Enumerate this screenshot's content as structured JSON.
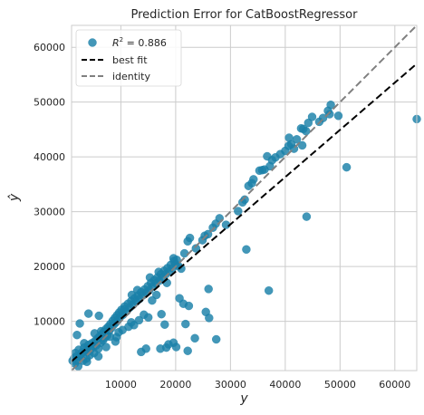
{
  "chart_data": {
    "type": "scatter",
    "title": "Prediction Error for CatBoostRegressor",
    "xlabel": "y",
    "ylabel": "ŷ",
    "xlim": [
      1000,
      64000
    ],
    "ylim": [
      1000,
      64000
    ],
    "xticks": [
      10000,
      20000,
      30000,
      40000,
      50000,
      60000
    ],
    "yticks": [
      10000,
      20000,
      30000,
      40000,
      50000,
      60000
    ],
    "xtick_labels": [
      "10000",
      "20000",
      "30000",
      "40000",
      "50000",
      "60000"
    ],
    "ytick_labels": [
      "10000",
      "20000",
      "30000",
      "40000",
      "50000",
      "60000"
    ],
    "grid": true,
    "legend": {
      "placement": "top-left",
      "entries": [
        {
          "kind": "marker",
          "label_prefix": "R",
          "label_sup": "2",
          "label_suffix": " = 0.886"
        },
        {
          "kind": "line",
          "label": "best fit"
        },
        {
          "kind": "line",
          "label": "identity"
        }
      ]
    },
    "best_fit": {
      "points": [
        [
          1000,
          2700
        ],
        [
          64000,
          57000
        ]
      ],
      "color": "#000000",
      "style": "dashed"
    },
    "identity": {
      "points": [
        [
          1000,
          1000
        ],
        [
          64000,
          64000
        ]
      ],
      "color": "#808080",
      "style": "dashed"
    },
    "marker_color": "#1a80a8",
    "series": [
      {
        "points": [
          [
            1200,
            2800
          ],
          [
            1500,
            3300
          ],
          [
            1700,
            4200
          ],
          [
            1900,
            3600
          ],
          [
            2100,
            2900
          ],
          [
            2300,
            4800
          ],
          [
            2500,
            3500
          ],
          [
            2700,
            3900
          ],
          [
            2900,
            4300
          ],
          [
            3100,
            2800
          ],
          [
            3300,
            5200
          ],
          [
            3500,
            4600
          ],
          [
            3700,
            3200
          ],
          [
            3900,
            4400
          ],
          [
            4100,
            5700
          ],
          [
            4300,
            3800
          ],
          [
            4500,
            4900
          ],
          [
            4700,
            6000
          ],
          [
            4900,
            5300
          ],
          [
            5100,
            4200
          ],
          [
            5300,
            6400
          ],
          [
            5500,
            5600
          ],
          [
            5700,
            6800
          ],
          [
            5900,
            5000
          ],
          [
            6100,
            7200
          ],
          [
            6300,
            6100
          ],
          [
            6500,
            7600
          ],
          [
            6700,
            6500
          ],
          [
            6900,
            8100
          ],
          [
            7100,
            7000
          ],
          [
            7300,
            8600
          ],
          [
            7500,
            7400
          ],
          [
            7700,
            9000
          ],
          [
            7900,
            8300
          ],
          [
            8100,
            9500
          ],
          [
            8300,
            8800
          ],
          [
            8500,
            10100
          ],
          [
            8700,
            9400
          ],
          [
            8900,
            10600
          ],
          [
            9100,
            9800
          ],
          [
            9300,
            11100
          ],
          [
            9500,
            10300
          ],
          [
            9700,
            11600
          ],
          [
            9900,
            10800
          ],
          [
            10100,
            12100
          ],
          [
            10400,
            11200
          ],
          [
            10700,
            12700
          ],
          [
            11000,
            11800
          ],
          [
            11300,
            13200
          ],
          [
            11600,
            12500
          ],
          [
            11900,
            13700
          ],
          [
            12200,
            13000
          ],
          [
            12500,
            14200
          ],
          [
            12800,
            13600
          ],
          [
            13100,
            14700
          ],
          [
            13400,
            14100
          ],
          [
            13700,
            15300
          ],
          [
            14000,
            14700
          ],
          [
            14300,
            15800
          ],
          [
            14600,
            15200
          ],
          [
            14900,
            16400
          ],
          [
            15200,
            15700
          ],
          [
            15500,
            17000
          ],
          [
            15800,
            16300
          ],
          [
            16100,
            17500
          ],
          [
            16400,
            16900
          ],
          [
            16700,
            18000
          ],
          [
            17000,
            17400
          ],
          [
            17300,
            18600
          ],
          [
            17600,
            18000
          ],
          [
            17900,
            19200
          ],
          [
            18200,
            18600
          ],
          [
            18500,
            19700
          ],
          [
            18800,
            19100
          ],
          [
            19100,
            20300
          ],
          [
            19400,
            19700
          ],
          [
            19700,
            21000
          ],
          [
            20000,
            20400
          ],
          [
            19600,
            21500
          ],
          [
            20200,
            21200
          ],
          [
            20500,
            20100
          ],
          [
            21000,
            19600
          ],
          [
            21600,
            22400
          ],
          [
            22200,
            24600
          ],
          [
            22600,
            25200
          ],
          [
            23700,
            23300
          ],
          [
            24900,
            24800
          ],
          [
            25300,
            25600
          ],
          [
            25900,
            25900
          ],
          [
            26800,
            27100
          ],
          [
            27300,
            27800
          ],
          [
            28000,
            28800
          ],
          [
            29200,
            27600
          ],
          [
            31400,
            30100
          ],
          [
            32200,
            31700
          ],
          [
            32600,
            32200
          ],
          [
            33300,
            34700
          ],
          [
            33900,
            35200
          ],
          [
            34200,
            35900
          ],
          [
            35300,
            37500
          ],
          [
            35800,
            37600
          ],
          [
            36200,
            37700
          ],
          [
            36700,
            40100
          ],
          [
            37200,
            38300
          ],
          [
            37600,
            39400
          ],
          [
            38200,
            39900
          ],
          [
            39100,
            40500
          ],
          [
            40000,
            41100
          ],
          [
            40600,
            42000
          ],
          [
            41100,
            42300
          ],
          [
            41600,
            41500
          ],
          [
            42100,
            43200
          ],
          [
            42900,
            45200
          ],
          [
            43300,
            45100
          ],
          [
            43800,
            44700
          ],
          [
            44200,
            46200
          ],
          [
            44900,
            47300
          ],
          [
            46200,
            46400
          ],
          [
            46900,
            47100
          ],
          [
            47800,
            48400
          ],
          [
            48300,
            49500
          ],
          [
            48100,
            47800
          ],
          [
            49700,
            47500
          ],
          [
            40700,
            43500
          ],
          [
            43100,
            42100
          ],
          [
            2000,
            7500
          ],
          [
            2500,
            9600
          ],
          [
            3300,
            6000
          ],
          [
            4100,
            11400
          ],
          [
            5200,
            7800
          ],
          [
            6000,
            11000
          ],
          [
            6400,
            8200
          ],
          [
            8000,
            7200
          ],
          [
            9600,
            8000
          ],
          [
            10600,
            12200
          ],
          [
            11900,
            9800
          ],
          [
            12400,
            9300
          ],
          [
            13300,
            10200
          ],
          [
            13700,
            4400
          ],
          [
            14200,
            11200
          ],
          [
            14600,
            5000
          ],
          [
            15000,
            10700
          ],
          [
            15700,
            13800
          ],
          [
            16500,
            14800
          ],
          [
            17400,
            11300
          ],
          [
            18000,
            9400
          ],
          [
            18300,
            5200
          ],
          [
            17200,
            5000
          ],
          [
            18700,
            5800
          ],
          [
            19600,
            6100
          ],
          [
            20100,
            5300
          ],
          [
            20700,
            14200
          ],
          [
            21400,
            13200
          ],
          [
            21800,
            9500
          ],
          [
            22200,
            4600
          ],
          [
            22400,
            12800
          ],
          [
            23500,
            6900
          ],
          [
            25500,
            11700
          ],
          [
            26000,
            15900
          ],
          [
            26100,
            10600
          ],
          [
            27400,
            6700
          ],
          [
            32900,
            23100
          ],
          [
            37000,
            15600
          ],
          [
            43900,
            29100
          ],
          [
            51200,
            38100
          ],
          [
            64000,
            46900
          ],
          [
            2200,
            1800
          ],
          [
            1600,
            2300
          ],
          [
            3800,
            2600
          ],
          [
            5900,
            3600
          ],
          [
            7300,
            5300
          ],
          [
            9000,
            6300
          ],
          [
            9200,
            7100
          ],
          [
            10300,
            8400
          ],
          [
            11400,
            9000
          ],
          [
            12000,
            14800
          ],
          [
            13000,
            15700
          ],
          [
            15300,
            18000
          ],
          [
            16900,
            19000
          ],
          [
            18400,
            17000
          ]
        ]
      }
    ]
  }
}
